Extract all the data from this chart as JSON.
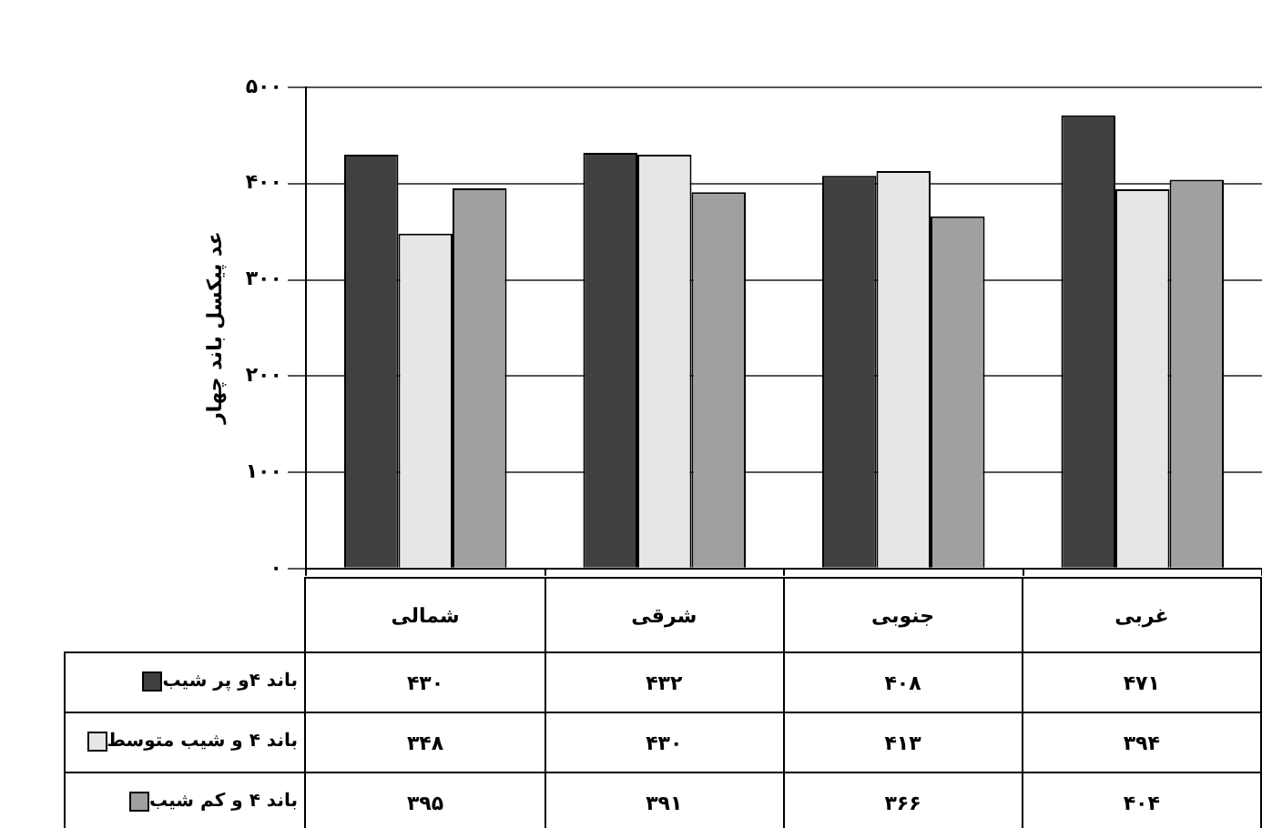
{
  "chart_data": {
    "type": "bar",
    "ylabel": "عد پیکسل باند چهار",
    "categories": [
      "شمالی",
      "شرقی",
      "جنوبی",
      "غربی"
    ],
    "series": [
      {
        "name": "باند ۴و پر شیب",
        "color": "#404040",
        "values": [
          430,
          432,
          408,
          471
        ],
        "value_labels": [
          "۴۳۰",
          "۴۳۲",
          "۴۰۸",
          "۴۷۱"
        ]
      },
      {
        "name": "باند ۴ و شیب متوسط",
        "color": "#e6e6e6",
        "values": [
          348,
          430,
          413,
          394
        ],
        "value_labels": [
          "۳۴۸",
          "۴۳۰",
          "۴۱۳",
          "۳۹۴"
        ]
      },
      {
        "name": "باند ۴ و کم شیب",
        "color": "#a0a0a0",
        "values": [
          395,
          391,
          366,
          404
        ],
        "value_labels": [
          "۳۹۵",
          "۳۹۱",
          "۳۶۶",
          "۴۰۴"
        ]
      }
    ],
    "ylim": [
      0,
      500
    ],
    "yticks": [
      {
        "value": 0,
        "label": "۰"
      },
      {
        "value": 100,
        "label": "۱۰۰"
      },
      {
        "value": 200,
        "label": "۲۰۰"
      },
      {
        "value": 300,
        "label": "۳۰۰"
      },
      {
        "value": 400,
        "label": "۴۰۰"
      },
      {
        "value": 500,
        "label": "۵۰۰"
      }
    ],
    "grid": "y",
    "legend": "bottom left"
  }
}
